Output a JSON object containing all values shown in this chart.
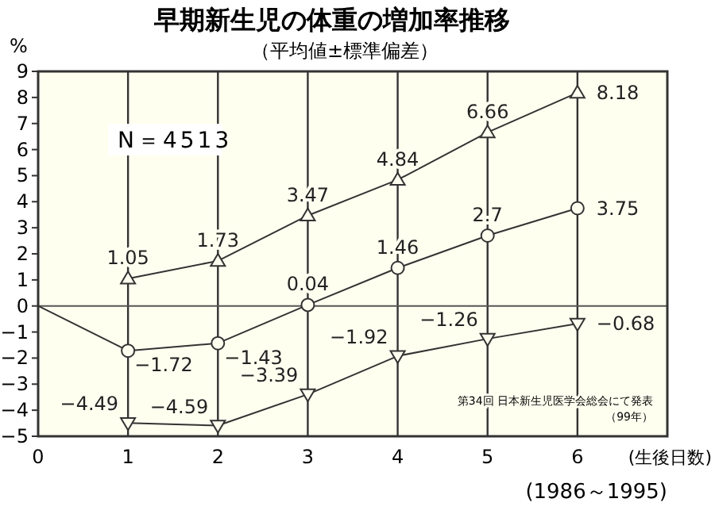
{
  "chart_data": {
    "type": "line",
    "title": "早期新生児の体重の増加率推移",
    "subtitle": "（平均値±標準偏差）",
    "xlabel": "(生後日数)",
    "ylabel": "%",
    "x": [
      1,
      2,
      3,
      4,
      5,
      6
    ],
    "series": [
      {
        "color": "#333333",
        "marker": "triangle",
        "values": [
          1.05,
          1.73,
          3.47,
          4.84,
          6.66,
          8.18
        ],
        "value_labels": [
          "1.05",
          "1.73",
          "3.47",
          "4.84",
          "6.66",
          "8.18"
        ]
      },
      {
        "color": "#333333",
        "marker": "circle",
        "x": [
          0,
          1,
          2,
          3,
          4,
          5,
          6
        ],
        "values": [
          0,
          -1.72,
          -1.43,
          0.04,
          1.46,
          2.7,
          3.75
        ],
        "value_labels": [
          null,
          "−1.72",
          "−1.43",
          "0.04",
          "1.46",
          "2.7",
          "3.75"
        ]
      },
      {
        "color": "#333333",
        "marker": "triangle-down",
        "values": [
          -4.49,
          -4.59,
          -3.39,
          -1.92,
          -1.26,
          -0.68
        ],
        "value_labels": [
          "−4.49",
          "−4.59",
          "−3.39",
          "−1.92",
          "−1.26",
          "−0.68"
        ]
      }
    ],
    "xlim": [
      0,
      7
    ],
    "xticks": [
      0,
      1,
      2,
      3,
      4,
      5,
      6
    ],
    "ylim": [
      -5,
      9
    ],
    "yticks": [
      -5,
      -4,
      -3,
      -2,
      -1,
      0,
      1,
      2,
      3,
      4,
      5,
      6,
      7,
      8,
      9
    ],
    "grid": "x",
    "ref_lines": [
      {
        "axis": "y",
        "value": 0,
        "color": "#555555"
      }
    ],
    "annotations": [
      "N＝4513",
      "第34回 日本新生児医学会総会にて発表",
      "（99年）",
      "(1986～1995)"
    ]
  }
}
